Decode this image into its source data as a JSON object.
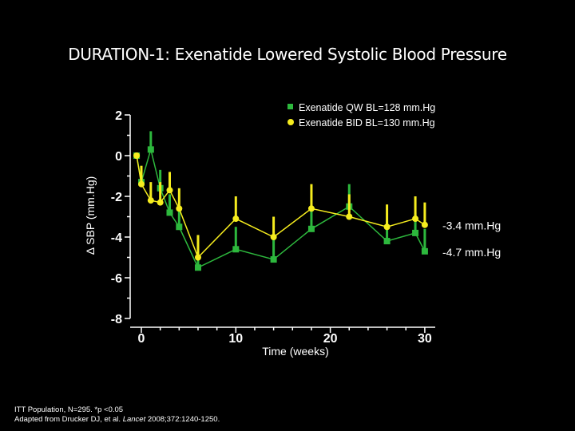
{
  "title": "DURATION-1: Exenatide Lowered Systolic Blood Pressure",
  "chart_data": {
    "type": "line",
    "xlabel": "Time (weeks)",
    "ylabel": "Δ SBP (mm.Hg)",
    "xlim": [
      -1,
      31
    ],
    "ylim": [
      -8,
      2
    ],
    "xticks": [
      0,
      10,
      20,
      30
    ],
    "yticks": [
      2,
      0,
      -2,
      -4,
      -6,
      -8
    ],
    "grid": false,
    "legend_position": "top-right",
    "series": [
      {
        "name": "Exenatide QW BL=128 mm.Hg",
        "color": "#2db83d",
        "marker": "square",
        "x": [
          -0.5,
          0,
          1,
          2,
          3,
          4,
          6,
          10,
          14,
          18,
          22,
          26,
          29,
          30
        ],
        "values": [
          0,
          -1.3,
          0.3,
          -1.6,
          -2.8,
          -3.5,
          -5.5,
          -4.6,
          -5.1,
          -3.6,
          -2.5,
          -4.2,
          -3.8,
          -4.7
        ],
        "error_upper": [
          0,
          0.8,
          0.9,
          0.9,
          0.9,
          0.9,
          0.9,
          1.1,
          1.1,
          1.1,
          1.1,
          1.0,
          1.0,
          1.1
        ],
        "end_label": "-4.7 mm.Hg"
      },
      {
        "name": "Exenatide BID BL=130 mm.Hg",
        "color": "#f5ec1e",
        "marker": "circle",
        "x": [
          -0.5,
          0,
          1,
          2,
          3,
          4,
          6,
          10,
          14,
          18,
          22,
          26,
          29,
          30
        ],
        "values": [
          0,
          -1.4,
          -2.2,
          -2.3,
          -1.7,
          -2.6,
          -5.0,
          -3.1,
          -4.0,
          -2.6,
          -3.0,
          -3.5,
          -3.1,
          -3.4
        ],
        "error_upper": [
          0,
          0.9,
          0.9,
          1.0,
          0.9,
          1.0,
          1.1,
          1.1,
          1.0,
          1.2,
          1.1,
          1.1,
          1.1,
          1.1
        ],
        "end_label": "-3.4 mm.Hg"
      }
    ]
  },
  "footnote": {
    "line1": "ITT Population, N=295. *p <0.05",
    "line2_prefix": "Adapted from Drucker DJ, et al. ",
    "line2_journal": "Lancet",
    "line2_suffix": " 2008;372:1240-1250."
  }
}
